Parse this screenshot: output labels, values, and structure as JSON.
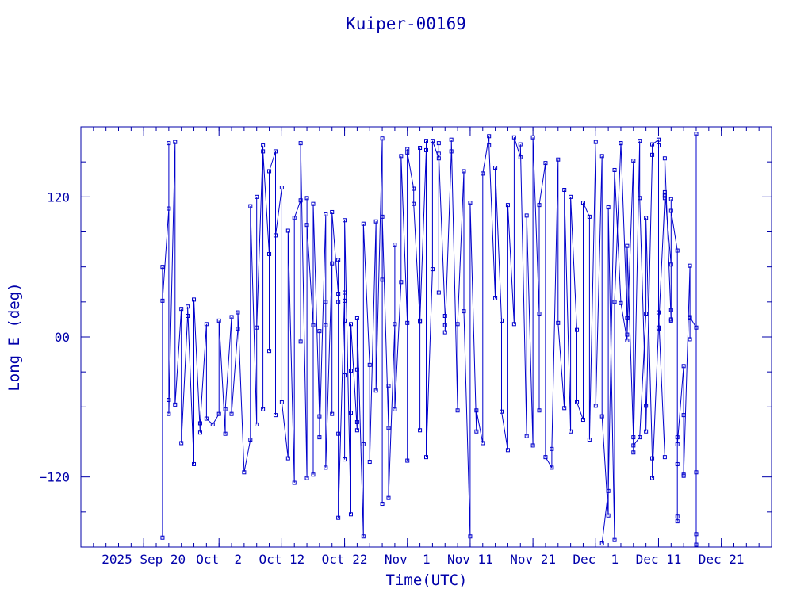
{
  "chart_data": {
    "type": "scatter",
    "title": "Kuiper-00169",
    "xlabel": "Time(UTC)",
    "ylabel": "Long E (deg)",
    "ylim": [
      -180,
      180
    ],
    "xlim": [
      "2025-09-10",
      "2025-12-29"
    ],
    "y_ticks": [
      {
        "value": 120,
        "label": "120"
      },
      {
        "value": 0,
        "label": "00"
      },
      {
        "value": -120,
        "label": "−120"
      }
    ],
    "x_ticks": [
      {
        "value": "2025-09-20",
        "label": "2025 Sep 20"
      },
      {
        "value": "2025-10-02",
        "label": "Oct  2"
      },
      {
        "value": "2025-10-12",
        "label": "Oct 12"
      },
      {
        "value": "2025-10-22",
        "label": "Oct 22"
      },
      {
        "value": "2025-11-01",
        "label": "Nov  1"
      },
      {
        "value": "2025-11-11",
        "label": "Nov 11"
      },
      {
        "value": "2025-11-21",
        "label": "Nov 21"
      },
      {
        "value": "2025-12-01",
        "label": "Dec  1"
      },
      {
        "value": "2025-12-11",
        "label": "Dec 11"
      },
      {
        "value": "2025-12-21",
        "label": "Dec 21"
      }
    ],
    "grid": false,
    "series": [
      {
        "color": "#0000cc",
        "points": [
          [
            "2025-09-23",
            -172
          ],
          [
            "2025-09-23",
            60
          ],
          [
            "2025-09-23",
            31
          ],
          [
            "2025-09-24",
            110
          ],
          [
            "2025-09-24",
            166
          ],
          [
            "2025-09-24",
            -54
          ],
          [
            "2025-09-24",
            -66
          ],
          [
            "2025-09-25",
            167
          ],
          [
            "2025-09-25",
            -58
          ],
          [
            "2025-09-26",
            24
          ],
          [
            "2025-09-26",
            -91
          ],
          [
            "2025-09-27",
            18
          ],
          [
            "2025-09-27",
            26
          ],
          [
            "2025-09-28",
            -109
          ],
          [
            "2025-09-28",
            32
          ],
          [
            "2025-09-29",
            -82
          ],
          [
            "2025-09-29",
            -74
          ],
          [
            "2025-09-30",
            11
          ],
          [
            "2025-09-30",
            -70
          ],
          [
            "2025-10-01",
            -75
          ],
          [
            "2025-10-02",
            -66
          ],
          [
            "2025-10-02",
            14
          ],
          [
            "2025-10-03",
            -83
          ],
          [
            "2025-10-03",
            -62
          ],
          [
            "2025-10-04",
            17
          ],
          [
            "2025-10-04",
            -66
          ],
          [
            "2025-10-05",
            7
          ],
          [
            "2025-10-05",
            21
          ],
          [
            "2025-10-06",
            -116
          ],
          [
            "2025-10-07",
            -88
          ],
          [
            "2025-10-07",
            112
          ],
          [
            "2025-10-08",
            -75
          ],
          [
            "2025-10-08",
            120
          ],
          [
            "2025-10-08",
            8
          ],
          [
            "2025-10-09",
            164
          ],
          [
            "2025-10-09",
            -62
          ],
          [
            "2025-10-09",
            159
          ],
          [
            "2025-10-10",
            71
          ],
          [
            "2025-10-10",
            -12
          ],
          [
            "2025-10-10",
            142
          ],
          [
            "2025-10-11",
            159
          ],
          [
            "2025-10-11",
            -67
          ],
          [
            "2025-10-11",
            87
          ],
          [
            "2025-10-12",
            128
          ],
          [
            "2025-10-12",
            -56
          ],
          [
            "2025-10-13",
            -104
          ],
          [
            "2025-10-13",
            91
          ],
          [
            "2025-10-14",
            -125
          ],
          [
            "2025-10-14",
            102
          ],
          [
            "2025-10-15",
            117
          ],
          [
            "2025-10-15",
            -4
          ],
          [
            "2025-10-15",
            166
          ],
          [
            "2025-10-16",
            -121
          ],
          [
            "2025-10-16",
            119
          ],
          [
            "2025-10-16",
            96
          ],
          [
            "2025-10-17",
            10
          ],
          [
            "2025-10-17",
            -118
          ],
          [
            "2025-10-17",
            114
          ],
          [
            "2025-10-18",
            -68
          ],
          [
            "2025-10-18",
            5
          ],
          [
            "2025-10-18",
            -86
          ],
          [
            "2025-10-19",
            105
          ],
          [
            "2025-10-19",
            10
          ],
          [
            "2025-10-19",
            30
          ],
          [
            "2025-10-19",
            -112
          ],
          [
            "2025-10-20",
            63
          ],
          [
            "2025-10-20",
            -66
          ],
          [
            "2025-10-20",
            107
          ],
          [
            "2025-10-21",
            37
          ],
          [
            "2025-10-21",
            30
          ],
          [
            "2025-10-21",
            66
          ],
          [
            "2025-10-21",
            -83
          ],
          [
            "2025-10-21",
            -155
          ],
          [
            "2025-10-22",
            38
          ],
          [
            "2025-10-22",
            14
          ],
          [
            "2025-10-22",
            31
          ],
          [
            "2025-10-22",
            -33
          ],
          [
            "2025-10-22",
            -105
          ],
          [
            "2025-10-22",
            100
          ],
          [
            "2025-10-23",
            -152
          ],
          [
            "2025-10-23",
            -29
          ],
          [
            "2025-10-23",
            -65
          ],
          [
            "2025-10-23",
            11
          ],
          [
            "2025-10-24",
            -80
          ],
          [
            "2025-10-24",
            -28
          ],
          [
            "2025-10-24",
            -73
          ],
          [
            "2025-10-24",
            16
          ],
          [
            "2025-10-25",
            -171
          ],
          [
            "2025-10-25",
            -92
          ],
          [
            "2025-10-25",
            97
          ],
          [
            "2025-10-26",
            -24
          ],
          [
            "2025-10-26",
            -107
          ],
          [
            "2025-10-27",
            99
          ],
          [
            "2025-10-27",
            -46
          ],
          [
            "2025-10-28",
            170
          ],
          [
            "2025-10-28",
            49
          ],
          [
            "2025-10-28",
            -143
          ],
          [
            "2025-10-28",
            103
          ],
          [
            "2025-10-29",
            -78
          ],
          [
            "2025-10-29",
            -42
          ],
          [
            "2025-10-29",
            -138
          ],
          [
            "2025-10-30",
            11
          ],
          [
            "2025-10-30",
            79
          ],
          [
            "2025-10-30",
            -62
          ],
          [
            "2025-10-31",
            47
          ],
          [
            "2025-10-31",
            155
          ],
          [
            "2025-11-01",
            12
          ],
          [
            "2025-11-01",
            161
          ]
        ]
      },
      {
        "color": "#0000cc",
        "points": [
          [
            "2025-11-01",
            -106
          ],
          [
            "2025-11-01",
            158
          ],
          [
            "2025-11-02",
            127
          ],
          [
            "2025-11-02",
            114
          ],
          [
            "2025-11-03",
            13
          ],
          [
            "2025-11-03",
            162
          ],
          [
            "2025-11-03",
            -80
          ],
          [
            "2025-11-03",
            14
          ],
          [
            "2025-11-04",
            160
          ],
          [
            "2025-11-04",
            168
          ],
          [
            "2025-11-04",
            -103
          ],
          [
            "2025-11-05",
            58
          ],
          [
            "2025-11-05",
            168
          ],
          [
            "2025-11-06",
            153
          ],
          [
            "2025-11-06",
            38
          ],
          [
            "2025-11-06",
            166
          ],
          [
            "2025-11-06",
            157
          ],
          [
            "2025-11-07",
            18
          ],
          [
            "2025-11-07",
            10
          ],
          [
            "2025-11-07",
            4
          ],
          [
            "2025-11-08",
            159
          ],
          [
            "2025-11-08",
            169
          ],
          [
            "2025-11-09",
            -63
          ],
          [
            "2025-11-09",
            11
          ],
          [
            "2025-11-10",
            142
          ],
          [
            "2025-11-10",
            22
          ],
          [
            "2025-11-11",
            -171
          ],
          [
            "2025-11-11",
            115
          ],
          [
            "2025-11-12",
            -81
          ],
          [
            "2025-11-12",
            -63
          ],
          [
            "2025-11-13",
            -91
          ],
          [
            "2025-11-13",
            140
          ],
          [
            "2025-11-14",
            172
          ],
          [
            "2025-11-14",
            164
          ],
          [
            "2025-11-15",
            33
          ],
          [
            "2025-11-15",
            145
          ],
          [
            "2025-11-16",
            14
          ],
          [
            "2025-11-16",
            -64
          ],
          [
            "2025-11-17",
            -97
          ],
          [
            "2025-11-17",
            113
          ],
          [
            "2025-11-18",
            11
          ],
          [
            "2025-11-18",
            171
          ],
          [
            "2025-11-19",
            154
          ],
          [
            "2025-11-19",
            165
          ],
          [
            "2025-11-20",
            -85
          ],
          [
            "2025-11-20",
            104
          ],
          [
            "2025-11-21",
            -93
          ],
          [
            "2025-11-21",
            171
          ],
          [
            "2025-11-22",
            20
          ],
          [
            "2025-11-22",
            -63
          ],
          [
            "2025-11-22",
            113
          ],
          [
            "2025-11-23",
            149
          ],
          [
            "2025-11-23",
            -103
          ],
          [
            "2025-11-24",
            -112
          ],
          [
            "2025-11-24",
            -96
          ],
          [
            "2025-11-25",
            152
          ],
          [
            "2025-11-25",
            12
          ],
          [
            "2025-11-26",
            -61
          ],
          [
            "2025-11-26",
            126
          ],
          [
            "2025-11-27",
            -81
          ],
          [
            "2025-11-27",
            120
          ],
          [
            "2025-11-28",
            6
          ],
          [
            "2025-11-28",
            -56
          ],
          [
            "2025-11-29",
            -71
          ],
          [
            "2025-11-29",
            115
          ],
          [
            "2025-11-30",
            103
          ],
          [
            "2025-11-30",
            -88
          ],
          [
            "2025-12-01",
            167
          ],
          [
            "2025-12-01",
            -59
          ],
          [
            "2025-12-02",
            155
          ],
          [
            "2025-12-02",
            -68
          ],
          [
            "2025-12-03",
            -153
          ],
          [
            "2025-12-03",
            111
          ],
          [
            "2025-12-04",
            -174
          ],
          [
            "2025-12-04",
            30
          ],
          [
            "2025-12-05",
            166
          ],
          [
            "2025-12-05",
            166
          ],
          [
            "2025-12-06",
            16
          ],
          [
            "2025-12-06",
            2
          ],
          [
            "2025-12-07",
            151
          ],
          [
            "2025-12-07",
            -99
          ],
          [
            "2025-12-08",
            168
          ],
          [
            "2025-12-08",
            119
          ],
          [
            "2025-12-09",
            -59
          ],
          [
            "2025-12-09",
            -81
          ],
          [
            "2025-12-10",
            156
          ],
          [
            "2025-12-10",
            165
          ],
          [
            "2025-12-11",
            169
          ],
          [
            "2025-12-11",
            21
          ],
          [
            "2025-12-12",
            -103
          ],
          [
            "2025-12-12",
            153
          ],
          [
            "2025-12-13",
            14
          ]
        ]
      },
      {
        "color": "#0000cc",
        "points": [
          [
            "2025-12-02",
            -177
          ],
          [
            "2025-12-03",
            -132
          ],
          [
            "2025-12-04",
            143
          ],
          [
            "2025-12-05",
            29
          ],
          [
            "2025-12-06",
            -3
          ],
          [
            "2025-12-06",
            78
          ],
          [
            "2025-12-07",
            -86
          ],
          [
            "2025-12-07",
            -93
          ],
          [
            "2025-12-08",
            -86
          ],
          [
            "2025-12-09",
            20
          ],
          [
            "2025-12-09",
            102
          ],
          [
            "2025-12-10",
            -104
          ],
          [
            "2025-12-10",
            -121
          ],
          [
            "2025-12-11",
            8
          ],
          [
            "2025-12-11",
            164
          ],
          [
            "2025-12-11",
            7
          ],
          [
            "2025-12-12",
            119
          ],
          [
            "2025-12-12",
            121
          ],
          [
            "2025-12-12",
            121
          ],
          [
            "2025-12-12",
            124
          ],
          [
            "2025-12-13",
            62
          ],
          [
            "2025-12-13",
            15
          ],
          [
            "2025-12-13",
            23
          ],
          [
            "2025-12-13",
            118
          ],
          [
            "2025-12-13",
            108
          ],
          [
            "2025-12-14",
            74
          ],
          [
            "2025-12-14",
            -158
          ],
          [
            "2025-12-14",
            -154
          ],
          [
            "2025-12-14",
            -109
          ],
          [
            "2025-12-14",
            -86
          ],
          [
            "2025-12-14",
            -92
          ],
          [
            "2025-12-15",
            -25
          ],
          [
            "2025-12-15",
            -67
          ],
          [
            "2025-12-15",
            -118
          ],
          [
            "2025-12-15",
            -119
          ],
          [
            "2025-12-16",
            61
          ],
          [
            "2025-12-16",
            -2
          ],
          [
            "2025-12-16",
            16
          ],
          [
            "2025-12-16",
            17
          ],
          [
            "2025-12-17",
            8
          ],
          [
            "2025-12-17",
            -178
          ],
          [
            "2025-12-17",
            174
          ],
          [
            "2025-12-17",
            -116
          ],
          [
            "2025-12-17",
            -169
          ]
        ]
      }
    ]
  }
}
